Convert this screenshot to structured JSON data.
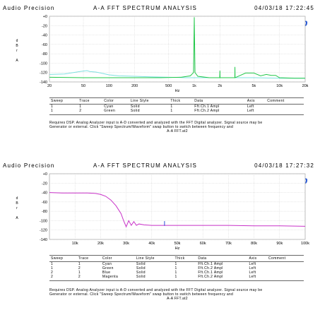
{
  "charts": [
    {
      "brand": "Audio Precision",
      "title": "A-A FFT SPECTRUM ANALYSIS",
      "timestamp": "04/03/18 17:22:45",
      "logo": "Ap",
      "ylabel": [
        "d",
        "B",
        "r",
        "",
        "A"
      ],
      "xlabel": "Hz",
      "legend": {
        "headers": [
          "Sweep",
          "Trace",
          "Color",
          "Line Style",
          "Thick",
          "Data",
          "Axis",
          "Comment"
        ],
        "rows": [
          [
            "1",
            "1",
            "Cyan",
            "Solid",
            "1",
            "Fft.Ch.1 Ampl",
            "Left",
            ""
          ],
          [
            "1",
            "2",
            "Green",
            "Solid",
            "1",
            "Fft.Ch.2 Ampl",
            "Left",
            ""
          ]
        ]
      },
      "note": "Requires DSP. Analog Analyzer input is A-D converted and analyzed with the FFT Digital analyzer. Signal source may be",
      "note2": "Generator or external. Click \"Sweep Spectrum/Waveform\" swap button to switch between frequency and",
      "footer": "A-A FFT.at2",
      "colors": {
        "cyan": "#7fe0e0",
        "green": "#22c84a",
        "magenta": "#c832c8",
        "blue": "#2a4bd7"
      }
    },
    {
      "brand": "Audio Precision",
      "title": "A-A FFT SPECTRUM ANALYSIS",
      "timestamp": "04/03/18 17:27:32",
      "logo": "Ap",
      "ylabel": [
        "d",
        "B",
        "r",
        "",
        "A"
      ],
      "xlabel": "Hz",
      "legend": {
        "headers": [
          "Sweep",
          "Trace",
          "Color",
          "Line Style",
          "Thick",
          "Data",
          "Axis",
          "Comment"
        ],
        "rows": [
          [
            "1",
            "1",
            "Cyan",
            "Solid",
            "1",
            "Fft.Ch.1 Ampl",
            "Left",
            ""
          ],
          [
            "1",
            "2",
            "Green",
            "Solid",
            "1",
            "Fft.Ch.2 Ampl",
            "Left",
            ""
          ],
          [
            "2",
            "1",
            "Blue",
            "Solid",
            "1",
            "Fft.Ch.1 Ampl",
            "Left",
            ""
          ],
          [
            "2",
            "2",
            "Magenta",
            "Solid",
            "1",
            "Fft.Ch.2 Ampl",
            "Left",
            ""
          ]
        ]
      },
      "note": "Requires DSP. Analog Analyzer input is A-D converted and analyzed with the FFT Digital analyzer. Signal source may be",
      "note2": "Generator or external. Click \"Sweep Spectrum/Waveform\" swap button to switch between frequency and",
      "footer": "A-A FFT.at2"
    }
  ],
  "chart_data": [
    {
      "type": "line",
      "title": "A-A FFT SPECTRUM ANALYSIS",
      "xlabel": "Hz",
      "ylabel": "dBr A",
      "xscale": "log",
      "xlim": [
        20,
        20000
      ],
      "ylim": [
        -140,
        0
      ],
      "x_ticks": [
        20,
        50,
        100,
        200,
        500,
        1000,
        2000,
        5000,
        10000,
        20000
      ],
      "x_tick_labels": [
        "20",
        "50",
        "100",
        "200",
        "500",
        "1k",
        "2k",
        "5k",
        "10k",
        "20k"
      ],
      "y_ticks": [
        0,
        -20,
        -40,
        -60,
        -80,
        -100,
        -120,
        -140
      ],
      "y_tick_labels": [
        "+0",
        "-20",
        "-40",
        "-60",
        "-80",
        "-100",
        "-120",
        "-140"
      ],
      "grid": true,
      "series": [
        {
          "name": "Cyan",
          "color": "#7fe0e0",
          "x": [
            20,
            30,
            45,
            55,
            60,
            70,
            80,
            100,
            130,
            200,
            300,
            500,
            800,
            1000,
            2000,
            5000,
            10000,
            20000
          ],
          "y": [
            -124,
            -123,
            -118,
            -116,
            -118,
            -119,
            -121,
            -125,
            -127,
            -128,
            -129,
            -130,
            -131,
            -131,
            -131,
            -131,
            -132,
            -132
          ]
        },
        {
          "name": "Green",
          "color": "#22c84a",
          "x": [
            20,
            50,
            100,
            200,
            400,
            700,
            900,
            980,
            1000,
            1020,
            1100,
            1500,
            1990,
            2000,
            2010,
            2990,
            3000,
            3010,
            4000,
            5000,
            6000,
            7000,
            8000,
            9000,
            10000,
            15000,
            20000
          ],
          "y": [
            -130,
            -131,
            -131,
            -131,
            -131,
            -130,
            -127,
            -120,
            -2,
            -120,
            -128,
            -131,
            -131,
            -116,
            -131,
            -131,
            -108,
            -131,
            -121,
            -121,
            -127,
            -124,
            -126,
            -126,
            -131,
            -132,
            -132
          ]
        }
      ]
    },
    {
      "type": "line",
      "title": "A-A FFT SPECTRUM ANALYSIS",
      "xlabel": "Hz",
      "ylabel": "dBr A",
      "xscale": "linear",
      "xlim": [
        0,
        100000
      ],
      "ylim": [
        -140,
        0
      ],
      "x_ticks": [
        10000,
        20000,
        30000,
        40000,
        50000,
        60000,
        70000,
        80000,
        90000,
        100000
      ],
      "x_tick_labels": [
        "10k",
        "20k",
        "30k",
        "40k",
        "50k",
        "60k",
        "70k",
        "80k",
        "90k",
        "100k"
      ],
      "y_ticks": [
        0,
        -20,
        -40,
        -60,
        -80,
        -100,
        -120,
        -140
      ],
      "y_tick_labels": [
        "+0",
        "-20",
        "-40",
        "-60",
        "-80",
        "-100",
        "-120",
        "-140"
      ],
      "grid": true,
      "series": [
        {
          "name": "Magenta",
          "color": "#c832c8",
          "x": [
            0,
            5000,
            10000,
            15000,
            18000,
            20000,
            22000,
            24000,
            26000,
            28000,
            29000,
            30000,
            31000,
            32000,
            33000,
            34000,
            35000,
            37000,
            40000,
            50000,
            60000,
            70000,
            80000,
            90000,
            100000
          ],
          "y": [
            -40,
            -41,
            -41,
            -41,
            -42,
            -44,
            -48,
            -56,
            -68,
            -85,
            -100,
            -113,
            -100,
            -110,
            -102,
            -110,
            -107,
            -109,
            -110,
            -110,
            -110,
            -110,
            -111,
            -111,
            -112
          ]
        },
        {
          "name": "Blue",
          "color": "#2a4bd7",
          "x": [
            45000,
            45000
          ],
          "y": [
            -111,
            -101
          ]
        }
      ]
    }
  ]
}
